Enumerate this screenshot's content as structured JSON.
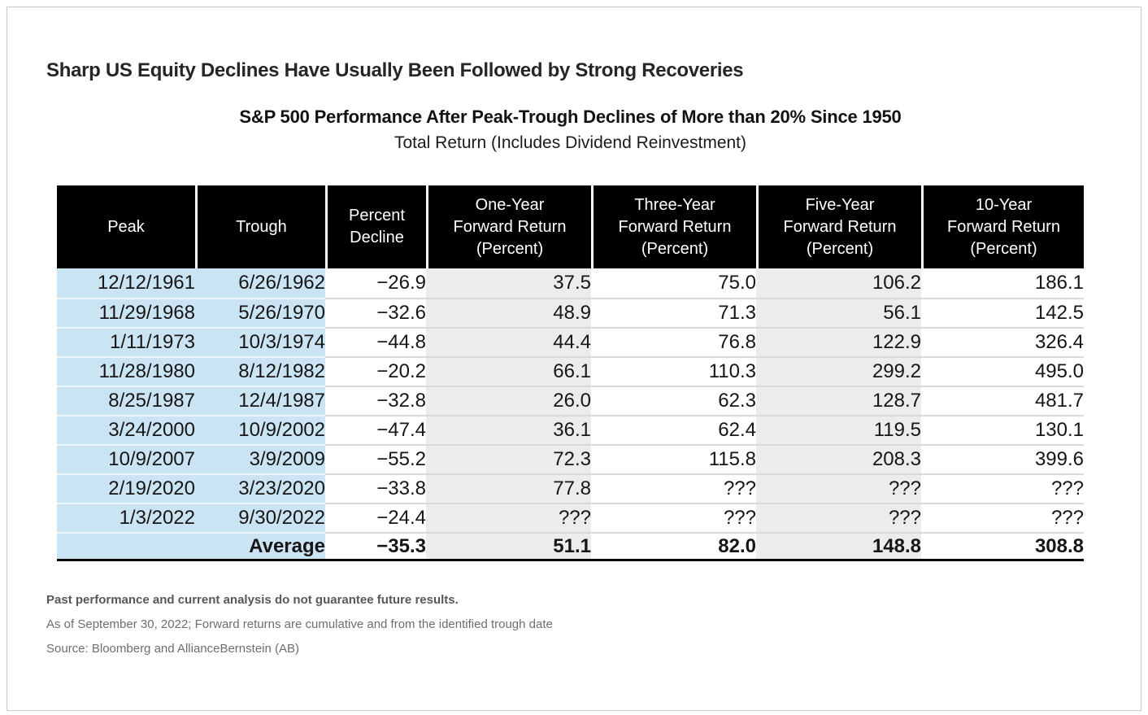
{
  "page": {
    "title": "Sharp US Equity Declines Have Usually Been Followed by Strong Recoveries"
  },
  "exhibit": {
    "title": "S&P 500 Performance After Peak-Trough Declines of More than 20% Since 1950",
    "subtitle": "Total Return (Includes Dividend Reinvestment)"
  },
  "table": {
    "header_lines": [
      [
        "Peak"
      ],
      [
        "Trough"
      ],
      [
        "Percent",
        "Decline"
      ],
      [
        "One-Year",
        "Forward Return",
        "(Percent)"
      ],
      [
        "Three-Year",
        "Forward Return",
        "(Percent)"
      ],
      [
        "Five-Year",
        "Forward Return",
        "(Percent)"
      ],
      [
        "10-Year",
        "Forward Return",
        "(Percent)"
      ]
    ]
  },
  "chart_data": {
    "type": "table",
    "title": "S&P 500 Performance After Peak-Trough Declines of More than 20% Since 1950",
    "subtitle": "Total Return (Includes Dividend Reinvestment)",
    "columns": [
      "Peak",
      "Trough",
      "Percent Decline",
      "One-Year Forward Return (Percent)",
      "Three-Year Forward Return (Percent)",
      "Five-Year Forward Return (Percent)",
      "10-Year Forward Return (Percent)"
    ],
    "rows": [
      [
        "12/12/1961",
        "6/26/1962",
        "−26.9",
        "37.5",
        "75.0",
        "106.2",
        "186.1"
      ],
      [
        "11/29/1968",
        "5/26/1970",
        "−32.6",
        "48.9",
        "71.3",
        "56.1",
        "142.5"
      ],
      [
        "1/11/1973",
        "10/3/1974",
        "−44.8",
        "44.4",
        "76.8",
        "122.9",
        "326.4"
      ],
      [
        "11/28/1980",
        "8/12/1982",
        "−20.2",
        "66.1",
        "110.3",
        "299.2",
        "495.0"
      ],
      [
        "8/25/1987",
        "12/4/1987",
        "−32.8",
        "26.0",
        "62.3",
        "128.7",
        "481.7"
      ],
      [
        "3/24/2000",
        "10/9/2002",
        "−47.4",
        "36.1",
        "62.4",
        "119.5",
        "130.1"
      ],
      [
        "10/9/2007",
        "3/9/2009",
        "−55.2",
        "72.3",
        "115.8",
        "208.3",
        "399.6"
      ],
      [
        "2/19/2020",
        "3/23/2020",
        "−33.8",
        "77.8",
        "???",
        "???",
        "???"
      ],
      [
        "1/3/2022",
        "9/30/2022",
        "−24.4",
        "???",
        "???",
        "???",
        "???"
      ]
    ],
    "average_row": {
      "label": "Average",
      "percent_decline": "−35.3",
      "one_year": "51.1",
      "three_year": "82.0",
      "five_year": "148.8",
      "ten_year": "308.8"
    },
    "missing_value_marker": "???"
  },
  "footnotes": {
    "disclaimer": "Past performance and current analysis do not guarantee future results.",
    "as_of": "As of September 30, 2022; Forward returns are cumulative and from the identified trough date",
    "source": "Source: Bloomberg and AllianceBernstein (AB)"
  },
  "colors": {
    "header_bg": "#000000",
    "header_text": "#ffffff",
    "date_column_bg": "#cbe4f3",
    "shaded_column_bg": "#ececec",
    "row_divider": "#d9d9d9",
    "table_bottom_border": "#000000",
    "footnote_text": "#6d6e71"
  }
}
